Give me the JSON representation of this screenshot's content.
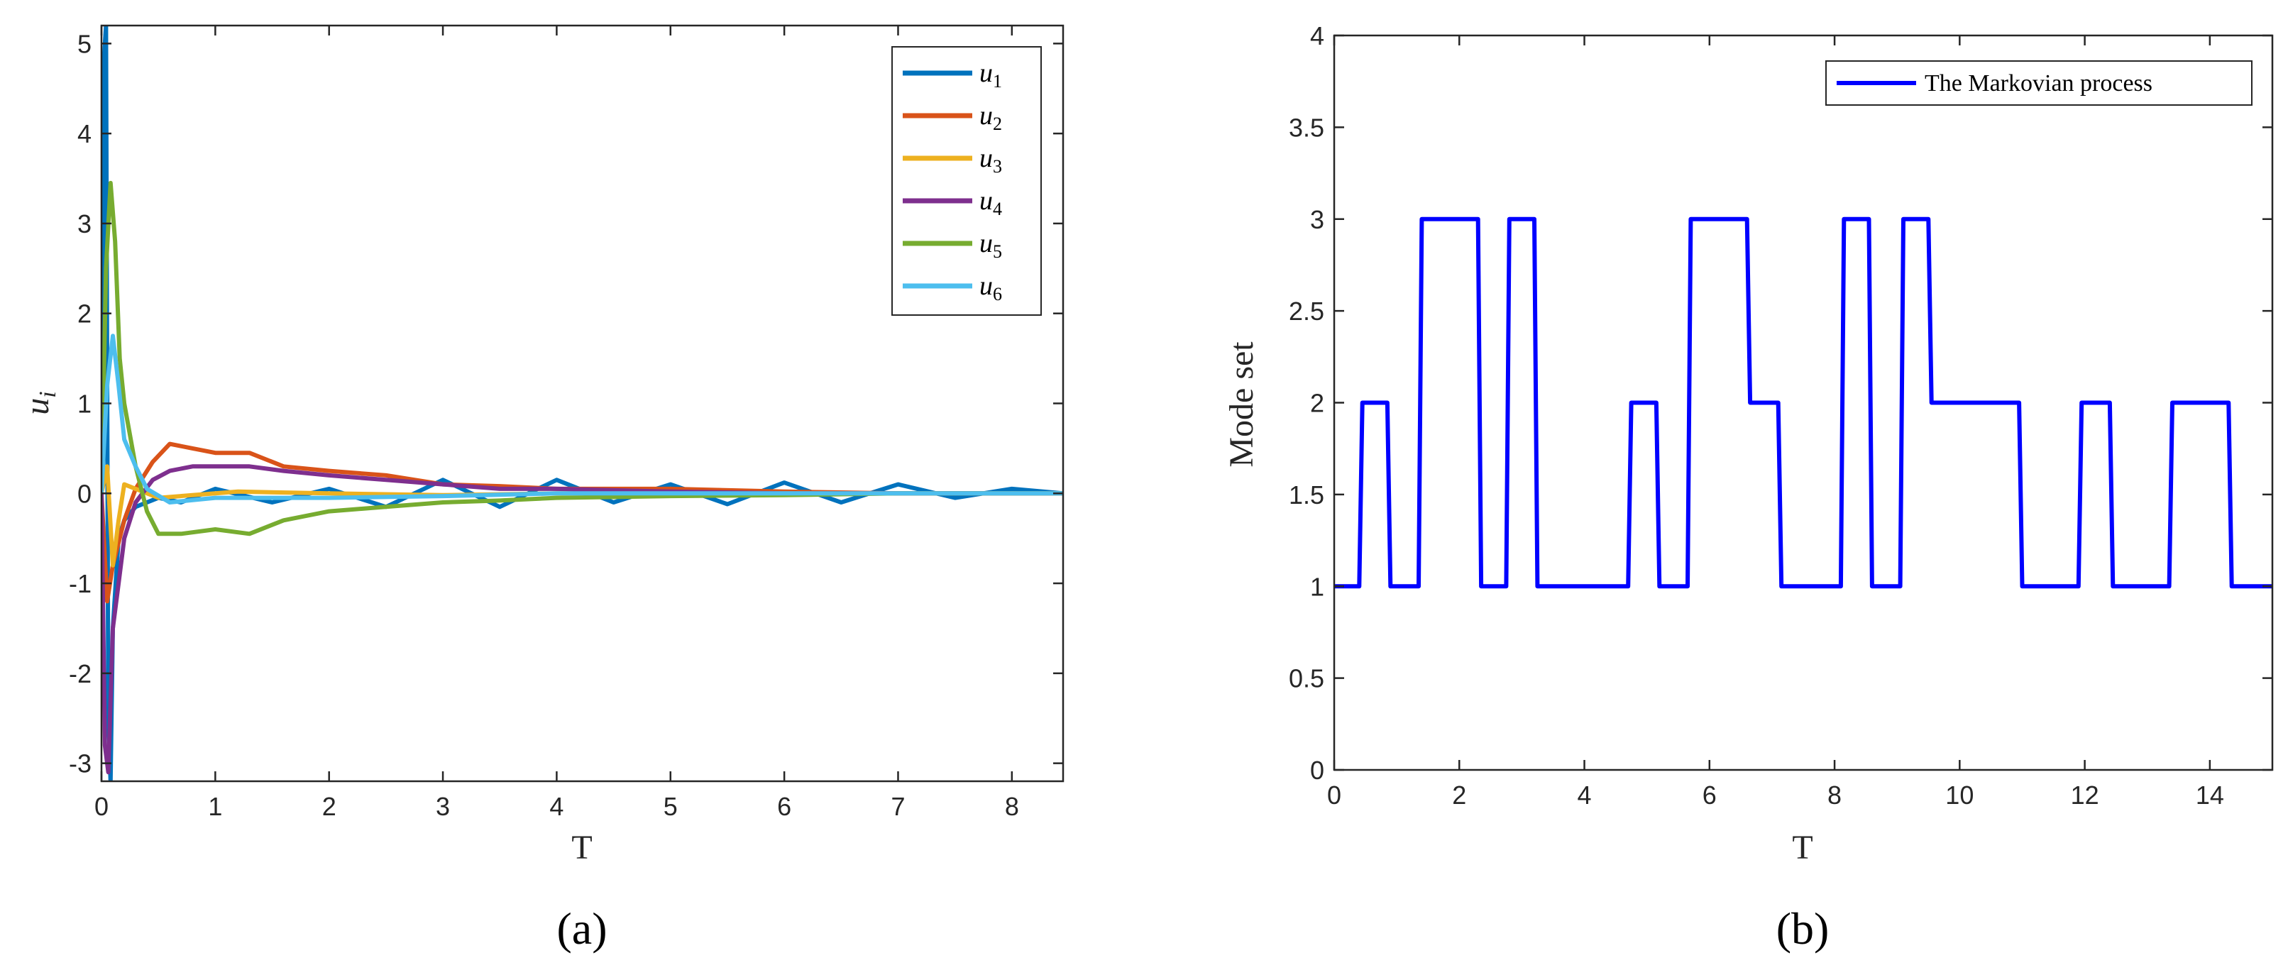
{
  "chart_data": [
    {
      "type": "line",
      "caption": "(a)",
      "xlabel": "T",
      "ylabel": "u",
      "ylabel_sub": "i",
      "xlim": [
        0,
        8.45
      ],
      "ylim": [
        -3.2,
        5.2
      ],
      "xticks": [
        0,
        1,
        2,
        3,
        4,
        5,
        6,
        7,
        8
      ],
      "yticks": [
        -3,
        -2,
        -1,
        0,
        1,
        2,
        3,
        4,
        5
      ],
      "legend_position": "top-right",
      "series": [
        {
          "name": "u",
          "sub": "1",
          "color": "#0072BD",
          "x": [
            0,
            0.02,
            0.04,
            0.06,
            0.08,
            0.1,
            0.15,
            0.2,
            0.3,
            0.5,
            0.7,
            1,
            1.5,
            2,
            2.5,
            3,
            3.5,
            4,
            4.5,
            5,
            5.5,
            6,
            6.5,
            7,
            7.5,
            8,
            8.45
          ],
          "y": [
            0,
            4.8,
            5.2,
            -2.5,
            -3.2,
            -1.5,
            -0.5,
            -0.3,
            -0.15,
            -0.05,
            -0.1,
            0.05,
            -0.1,
            0.05,
            -0.15,
            0.15,
            -0.15,
            0.15,
            -0.1,
            0.1,
            -0.12,
            0.12,
            -0.1,
            0.1,
            -0.05,
            0.05,
            0
          ]
        },
        {
          "name": "u",
          "sub": "2",
          "color": "#D95319",
          "x": [
            0,
            0.05,
            0.1,
            0.2,
            0.3,
            0.45,
            0.6,
            0.8,
            1.0,
            1.3,
            1.6,
            2,
            2.5,
            3,
            3.5,
            4,
            5,
            6,
            7,
            8,
            8.45
          ],
          "y": [
            0,
            -1.2,
            -0.8,
            -0.3,
            0.05,
            0.35,
            0.55,
            0.5,
            0.45,
            0.45,
            0.3,
            0.25,
            0.2,
            0.1,
            0.08,
            0.05,
            0.05,
            0.02,
            0,
            0,
            0
          ]
        },
        {
          "name": "u",
          "sub": "3",
          "color": "#EDB120",
          "x": [
            0,
            0.05,
            0.1,
            0.15,
            0.2,
            0.3,
            0.5,
            0.8,
            1.2,
            2,
            3,
            4,
            5,
            6,
            7,
            8,
            8.45
          ],
          "y": [
            0,
            0.3,
            -0.8,
            -0.3,
            0.1,
            0.05,
            -0.05,
            -0.02,
            0.02,
            0,
            -0.02,
            0,
            0.01,
            0,
            0,
            0,
            0
          ]
        },
        {
          "name": "u",
          "sub": "4",
          "color": "#7E2F8E",
          "x": [
            0,
            0.03,
            0.06,
            0.1,
            0.15,
            0.2,
            0.3,
            0.45,
            0.6,
            0.8,
            1,
            1.3,
            1.6,
            2,
            2.5,
            3,
            3.5,
            4,
            5,
            6,
            7,
            8,
            8.45
          ],
          "y": [
            0,
            -2.8,
            -3.1,
            -1.5,
            -1.0,
            -0.5,
            -0.1,
            0.15,
            0.25,
            0.3,
            0.3,
            0.3,
            0.25,
            0.2,
            0.15,
            0.1,
            0.05,
            0.05,
            0.02,
            0,
            0,
            0,
            0
          ]
        },
        {
          "name": "u",
          "sub": "5",
          "color": "#77AC30",
          "x": [
            0,
            0.04,
            0.08,
            0.12,
            0.16,
            0.2,
            0.3,
            0.4,
            0.5,
            0.7,
            1,
            1.3,
            1.6,
            2,
            2.5,
            3,
            3.5,
            4,
            5,
            6,
            7,
            8,
            8.45
          ],
          "y": [
            0,
            2.5,
            3.45,
            2.8,
            1.5,
            1.0,
            0.3,
            -0.2,
            -0.45,
            -0.45,
            -0.4,
            -0.45,
            -0.3,
            -0.2,
            -0.15,
            -0.1,
            -0.08,
            -0.05,
            -0.03,
            -0.02,
            0,
            0,
            0
          ]
        },
        {
          "name": "u",
          "sub": "6",
          "color": "#4DBEEE",
          "x": [
            0,
            0.05,
            0.1,
            0.15,
            0.2,
            0.3,
            0.4,
            0.6,
            1,
            1.5,
            2,
            3,
            4,
            5,
            6,
            7,
            8,
            8.45
          ],
          "y": [
            0,
            1.2,
            1.75,
            1.2,
            0.6,
            0.3,
            0.05,
            -0.1,
            -0.05,
            -0.05,
            -0.05,
            -0.03,
            0,
            0,
            0,
            0,
            0,
            0
          ]
        }
      ]
    },
    {
      "type": "line",
      "caption": "(b)",
      "xlabel": "T",
      "ylabel": "Mode set",
      "xlim": [
        0,
        15
      ],
      "ylim": [
        0,
        4
      ],
      "xticks": [
        0,
        2,
        4,
        6,
        8,
        10,
        12,
        14
      ],
      "xtick_labels": [
        "0",
        "2",
        "4",
        "6",
        "8",
        "10",
        "12",
        "14"
      ],
      "yticks": [
        0,
        0.5,
        1,
        1.5,
        2,
        2.5,
        3,
        3.5,
        4
      ],
      "ytick_labels": [
        "0",
        "0.5",
        "1",
        "1.5",
        "2",
        "2.5",
        "3",
        "3.5",
        "4"
      ],
      "legend_position": "top-right",
      "series": [
        {
          "name": "The Markovian process",
          "color": "#0000FF",
          "x": [
            0,
            0.4,
            0.45,
            0.85,
            0.9,
            1.35,
            1.4,
            2.3,
            2.35,
            2.75,
            2.8,
            3.2,
            3.25,
            4.7,
            4.75,
            5.15,
            5.2,
            5.65,
            5.7,
            6.6,
            6.65,
            7.1,
            7.15,
            8.1,
            8.15,
            8.55,
            8.6,
            9.05,
            9.1,
            9.5,
            9.55,
            10.95,
            11.0,
            11.9,
            11.95,
            12.4,
            12.45,
            13.35,
            13.4,
            14.3,
            14.35,
            15
          ],
          "y": [
            1,
            1,
            2,
            2,
            1,
            1,
            3,
            3,
            1,
            1,
            3,
            3,
            1,
            1,
            2,
            2,
            1,
            1,
            3,
            3,
            2,
            2,
            1,
            1,
            3,
            3,
            1,
            1,
            3,
            3,
            2,
            2,
            1,
            1,
            2,
            2,
            1,
            1,
            2,
            2,
            1,
            1
          ]
        }
      ]
    }
  ]
}
